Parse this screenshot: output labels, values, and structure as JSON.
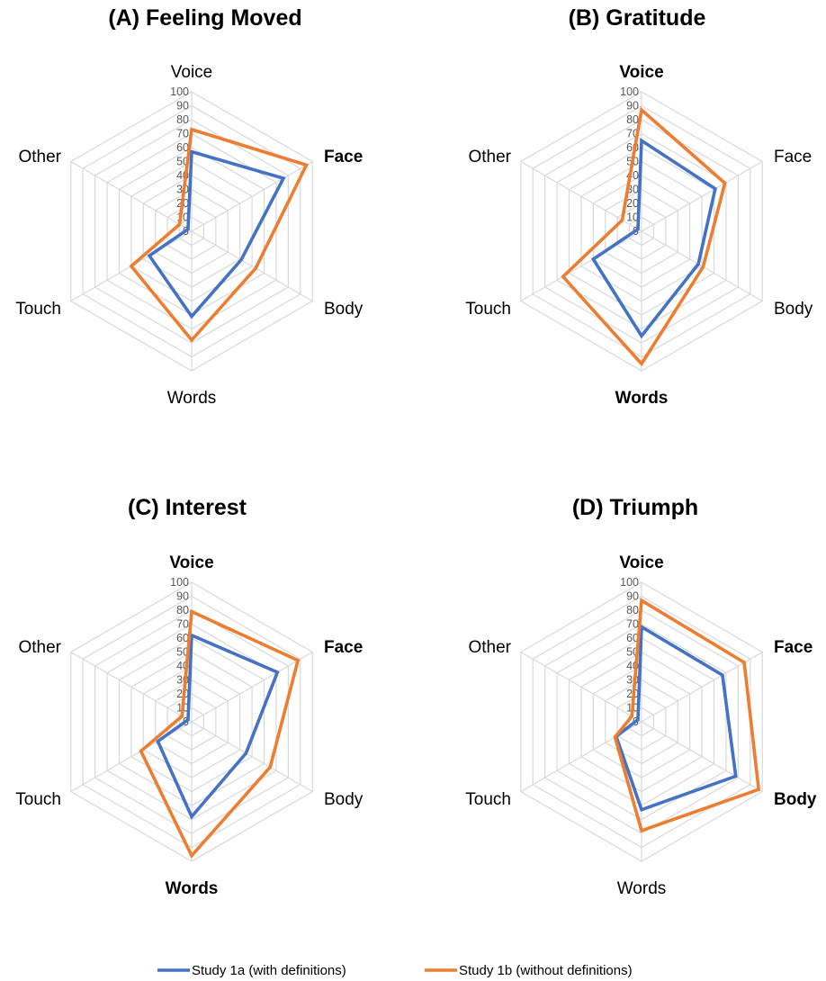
{
  "chart_data": [
    {
      "type": "radar",
      "title": "(A) Feeling Moved",
      "axes": [
        "Voice",
        "Face",
        "Body",
        "Words",
        "Touch",
        "Other"
      ],
      "bold_axes": [
        "Face"
      ],
      "ticks": [
        "0",
        "10",
        "20",
        "30",
        "40",
        "50",
        "60",
        "70",
        "80",
        "90",
        "100"
      ],
      "range": [
        0,
        100
      ],
      "series": [
        {
          "name": "Study 1a (with definitions)",
          "values": [
            57,
            76,
            41,
            61,
            35,
            3
          ]
        },
        {
          "name": "Study 1b (without definitions)",
          "values": [
            73,
            95,
            53,
            78,
            50,
            10
          ]
        }
      ]
    },
    {
      "type": "radar",
      "title": "(B) Gratitude",
      "axes": [
        "Voice",
        "Face",
        "Body",
        "Words",
        "Touch",
        "Other"
      ],
      "bold_axes": [
        "Voice",
        "Words"
      ],
      "ticks": [
        "0",
        "10",
        "20",
        "30",
        "40",
        "50",
        "60",
        "70",
        "80",
        "90",
        "100"
      ],
      "range": [
        0,
        100
      ],
      "series": [
        {
          "name": "Study 1a (with definitions)",
          "values": [
            65,
            61,
            47,
            75,
            40,
            3
          ]
        },
        {
          "name": "Study 1b (without definitions)",
          "values": [
            87,
            69,
            51,
            95,
            65,
            16
          ]
        }
      ]
    },
    {
      "type": "radar",
      "title": "(C) Interest",
      "axes": [
        "Voice",
        "Face",
        "Body",
        "Words",
        "Touch",
        "Other"
      ],
      "bold_axes": [
        "Voice",
        "Face",
        "Words"
      ],
      "ticks": [
        "0",
        "10",
        "20",
        "30",
        "40",
        "50",
        "60",
        "70",
        "80",
        "90",
        "100"
      ],
      "range": [
        0,
        100
      ],
      "series": [
        {
          "name": "Study 1a (with definitions)",
          "values": [
            62,
            71,
            45,
            68,
            28,
            3
          ]
        },
        {
          "name": "Study 1b (without definitions)",
          "values": [
            79,
            88,
            65,
            96,
            42,
            8
          ]
        }
      ]
    },
    {
      "type": "radar",
      "title": "(D) Triumph",
      "axes": [
        "Voice",
        "Face",
        "Body",
        "Words",
        "Touch",
        "Other"
      ],
      "bold_axes": [
        "Voice",
        "Face",
        "Body"
      ],
      "ticks": [
        "0",
        "10",
        "20",
        "30",
        "40",
        "50",
        "60",
        "70",
        "80",
        "90",
        "100"
      ],
      "range": [
        0,
        100
      ],
      "series": [
        {
          "name": "Study 1a (with definitions)",
          "values": [
            68,
            67,
            78,
            63,
            21,
            3
          ]
        },
        {
          "name": "Study 1b (without definitions)",
          "values": [
            87,
            85,
            97,
            78,
            22,
            8
          ]
        }
      ]
    }
  ],
  "legend": {
    "placement": "bottom",
    "items": [
      {
        "label": "Study 1a (with definitions)",
        "color": "#4472c4"
      },
      {
        "label": "Study 1b (without definitions)",
        "color": "#ed7d31"
      }
    ]
  },
  "colors": {
    "series": [
      "#4472c4",
      "#ed7d31"
    ],
    "grid": "#d9d9d9",
    "tick": "#595959"
  }
}
